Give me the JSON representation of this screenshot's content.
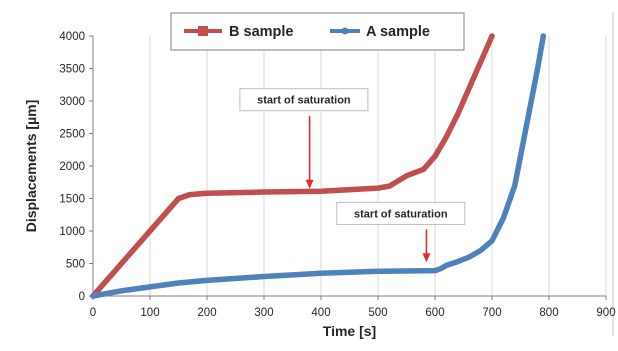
{
  "chart_data": {
    "type": "line",
    "title": "",
    "xlabel": "Time [s]",
    "ylabel": "Displacements  [µm]",
    "xlim": [
      0,
      900
    ],
    "ylim": [
      0,
      4000
    ],
    "x_ticks": [
      0,
      100,
      200,
      300,
      400,
      500,
      600,
      700,
      800,
      900
    ],
    "x_tick_labels": [
      "0",
      "100",
      "200",
      "300",
      "400",
      "500",
      "600",
      "700",
      "800",
      "900"
    ],
    "y_ticks": [
      0,
      500,
      1000,
      1500,
      2000,
      2500,
      3000,
      3500,
      4000
    ],
    "y_tick_labels": [
      "0",
      "500",
      "1000",
      "1500",
      "2000",
      "2500",
      "3000",
      "3500",
      "4000"
    ],
    "grid": "vertical",
    "legend_position": "top-center",
    "series": [
      {
        "name": "B sample",
        "color": "#c0504d",
        "marker": "square",
        "x": [
          0,
          40,
          80,
          120,
          150,
          170,
          200,
          300,
          400,
          500,
          520,
          550,
          580,
          600,
          620,
          640,
          660,
          680,
          700
        ],
        "y": [
          0,
          400,
          800,
          1200,
          1500,
          1560,
          1580,
          1600,
          1610,
          1660,
          1690,
          1850,
          1950,
          2150,
          2450,
          2800,
          3200,
          3600,
          4000
        ]
      },
      {
        "name": "A sample",
        "color": "#4f81bd",
        "marker": "circle",
        "x": [
          0,
          50,
          100,
          150,
          200,
          300,
          400,
          500,
          600,
          610,
          620,
          640,
          660,
          680,
          700,
          720,
          740,
          760,
          780,
          790
        ],
        "y": [
          0,
          80,
          140,
          200,
          240,
          300,
          350,
          380,
          390,
          420,
          470,
          530,
          600,
          700,
          850,
          1200,
          1700,
          2600,
          3500,
          4000
        ]
      }
    ],
    "annotations": [
      {
        "text": "start of saturation",
        "x": 380,
        "y": 1650,
        "box_center_x": 370,
        "box_center_y": 3020
      },
      {
        "text": "start of saturation",
        "x": 585,
        "y": 520,
        "box_center_x": 540,
        "box_center_y": 1270
      }
    ]
  }
}
